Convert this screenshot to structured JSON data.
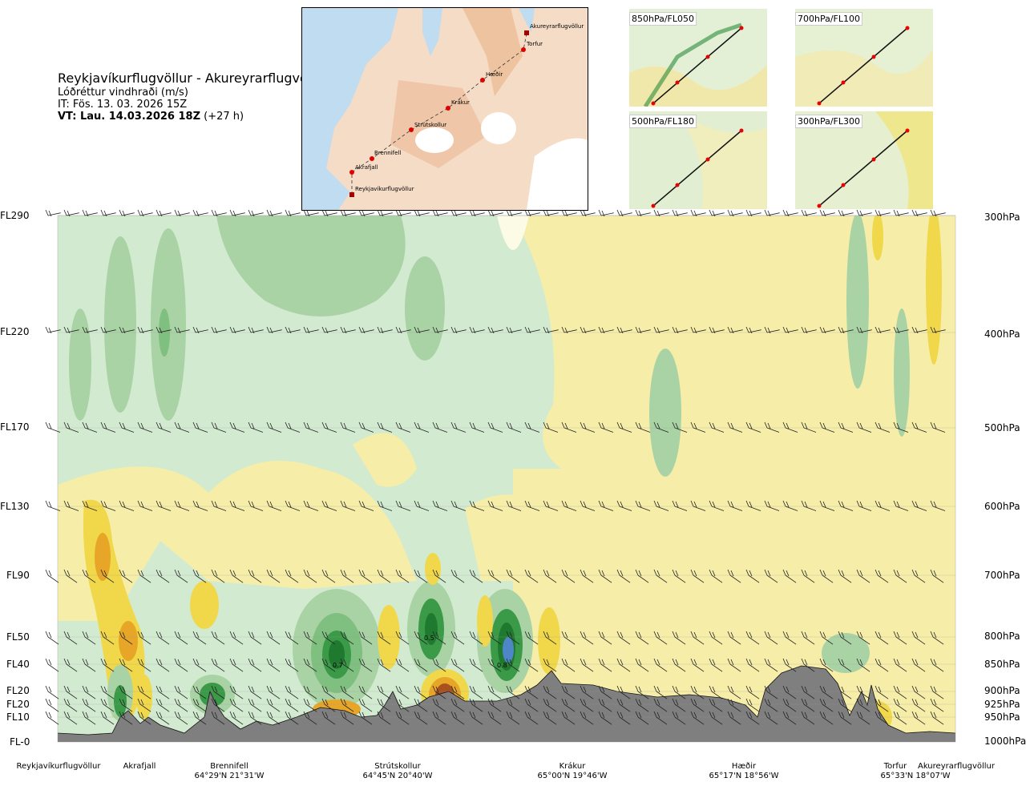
{
  "title": {
    "route": "Reykjavíkurflugvöllur - Akureyrarflugvöllur",
    "variable": "Lóðréttur vindhraði (m/s)",
    "issue": "IT: Fös. 13. 03. 2026 15Z",
    "valid_bold": "VT: Lau. 14.03.2026 18Z",
    "valid_extra": " (+27 h)"
  },
  "map": {
    "waypoints": [
      "Reykjavíkurflugvöllur",
      "Akrafjall",
      "Brennifell",
      "Strútskollur",
      "Krákur",
      "Hæðir",
      "Torfur",
      "Akureyrarflugvöllur"
    ]
  },
  "mini_maps": [
    {
      "label": "850hPa/FL050"
    },
    {
      "label": "700hPa/FL100"
    },
    {
      "label": "500hPa/FL180"
    },
    {
      "label": "300hPa/FL300"
    }
  ],
  "chart_data": {
    "type": "heatmap",
    "title": "Lóðréttur vindhraði (m/s)",
    "left_levels": [
      "FL290",
      "FL220",
      "FL170",
      "FL130",
      "FL90",
      "FL50",
      "FL40",
      "FL20",
      "FL20",
      "FL10",
      "FL-0"
    ],
    "right_levels": [
      "300hPa",
      "400hPa",
      "500hPa",
      "600hPa",
      "700hPa",
      "800hPa",
      "850hPa",
      "900hPa",
      "925hPa",
      "950hPa",
      "1000hPa"
    ],
    "pressure_values": [
      300,
      400,
      500,
      600,
      700,
      800,
      850,
      900,
      925,
      950,
      1000
    ],
    "locations": [
      {
        "name": "Reykjavíkurflugvöllur",
        "coord": ""
      },
      {
        "name": "Akrafjall",
        "coord": ""
      },
      {
        "name": "Brennifell",
        "coord": "64°29'N 21°31'W"
      },
      {
        "name": "Strútskollur",
        "coord": "64°45'N 20°40'W"
      },
      {
        "name": "Krákur",
        "coord": "65°00'N 19°46'W"
      },
      {
        "name": "Hæðir",
        "coord": "65°17'N 18°56'W"
      },
      {
        "name": "Torfur",
        "coord": "65°33'N 18°07'W"
      },
      {
        "name": "Akureyrarflugvöllur",
        "coord": ""
      }
    ],
    "annotations": [
      "0.7",
      "0.5",
      "0.8"
    ],
    "colors": {
      "strong_down": "#e8a628",
      "down": "#f0d84a",
      "weak_down": "#f6eda8",
      "neutral": "#fbfbe6",
      "weak_up": "#d2ebd0",
      "up": "#a9d3a5",
      "strong_up": "#3a9a48",
      "max_up": "#4f86c8",
      "terrain": "#7f7f7f"
    }
  }
}
